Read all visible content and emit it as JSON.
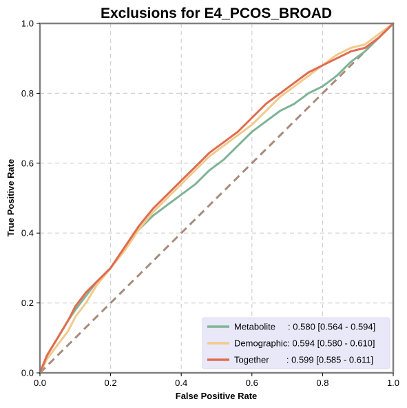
{
  "chart_data": {
    "type": "line",
    "title": "Exclusions for E4_PCOS_BROAD",
    "xlabel": "False Positive Rate",
    "ylabel": "True Positive Rate",
    "xlim": [
      0,
      1
    ],
    "ylim": [
      0,
      1
    ],
    "xticks": [
      "0.0",
      "0.2",
      "0.4",
      "0.6",
      "0.8",
      "1.0"
    ],
    "yticks": [
      "0.0",
      "0.2",
      "0.4",
      "0.6",
      "0.8",
      "1.0"
    ],
    "grid": true,
    "legend_position": "lower-right",
    "diagonal": {
      "x": [
        0,
        1
      ],
      "y": [
        0,
        1
      ],
      "color": "#a88b7c",
      "style": "dashed"
    },
    "series": [
      {
        "name": "Metabolite",
        "legend_label": "Metabolite     : 0.580 [0.564 - 0.594]",
        "color": "#7fb395",
        "x": [
          0,
          0.02,
          0.05,
          0.08,
          0.1,
          0.13,
          0.16,
          0.2,
          0.24,
          0.28,
          0.32,
          0.36,
          0.4,
          0.44,
          0.48,
          0.52,
          0.56,
          0.6,
          0.64,
          0.68,
          0.72,
          0.76,
          0.8,
          0.84,
          0.88,
          0.92,
          0.96,
          1.0
        ],
        "y": [
          0,
          0.05,
          0.1,
          0.15,
          0.18,
          0.22,
          0.26,
          0.3,
          0.36,
          0.41,
          0.45,
          0.48,
          0.51,
          0.54,
          0.58,
          0.61,
          0.65,
          0.69,
          0.72,
          0.75,
          0.77,
          0.8,
          0.82,
          0.85,
          0.89,
          0.92,
          0.96,
          1.0
        ]
      },
      {
        "name": "Demographic",
        "legend_label": "Demographic: 0.594 [0.580 - 0.610]",
        "color": "#f2ca8b",
        "x": [
          0,
          0.02,
          0.05,
          0.08,
          0.1,
          0.13,
          0.16,
          0.2,
          0.24,
          0.28,
          0.32,
          0.36,
          0.4,
          0.44,
          0.48,
          0.52,
          0.56,
          0.6,
          0.64,
          0.68,
          0.72,
          0.76,
          0.8,
          0.84,
          0.88,
          0.92,
          0.96,
          1.0
        ],
        "y": [
          0,
          0.04,
          0.08,
          0.12,
          0.16,
          0.2,
          0.25,
          0.3,
          0.35,
          0.41,
          0.46,
          0.5,
          0.54,
          0.58,
          0.62,
          0.65,
          0.68,
          0.71,
          0.75,
          0.79,
          0.82,
          0.85,
          0.88,
          0.91,
          0.93,
          0.94,
          0.97,
          1.0
        ]
      },
      {
        "name": "Together",
        "legend_label": "Together       : 0.599 [0.585 - 0.611]",
        "color": "#e06c50",
        "x": [
          0,
          0.02,
          0.05,
          0.08,
          0.1,
          0.13,
          0.16,
          0.2,
          0.24,
          0.28,
          0.32,
          0.36,
          0.4,
          0.44,
          0.48,
          0.52,
          0.56,
          0.6,
          0.64,
          0.68,
          0.72,
          0.76,
          0.8,
          0.84,
          0.88,
          0.92,
          0.96,
          1.0
        ],
        "y": [
          0,
          0.05,
          0.1,
          0.15,
          0.19,
          0.23,
          0.26,
          0.3,
          0.36,
          0.42,
          0.47,
          0.51,
          0.55,
          0.59,
          0.63,
          0.66,
          0.69,
          0.73,
          0.77,
          0.8,
          0.83,
          0.86,
          0.88,
          0.9,
          0.92,
          0.93,
          0.96,
          1.0
        ]
      }
    ]
  }
}
